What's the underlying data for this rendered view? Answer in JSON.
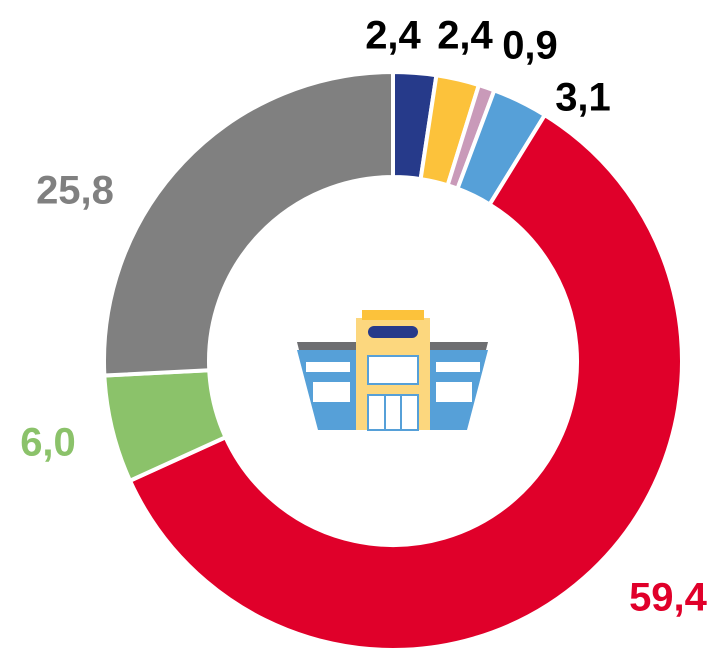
{
  "chart_data": {
    "type": "donut",
    "values": [
      2.4,
      2.4,
      0.9,
      3.1,
      59.4,
      6.0,
      25.8
    ],
    "value_labels": [
      "2,4",
      "2,4",
      "0,9",
      "3,1",
      "59,4",
      "6,0",
      "25,8"
    ],
    "colors": [
      "#263a8a",
      "#fcc23b",
      "#c99ab9",
      "#56a0d8",
      "#e0002a",
      "#8bc26a",
      "#808080"
    ]
  }
}
